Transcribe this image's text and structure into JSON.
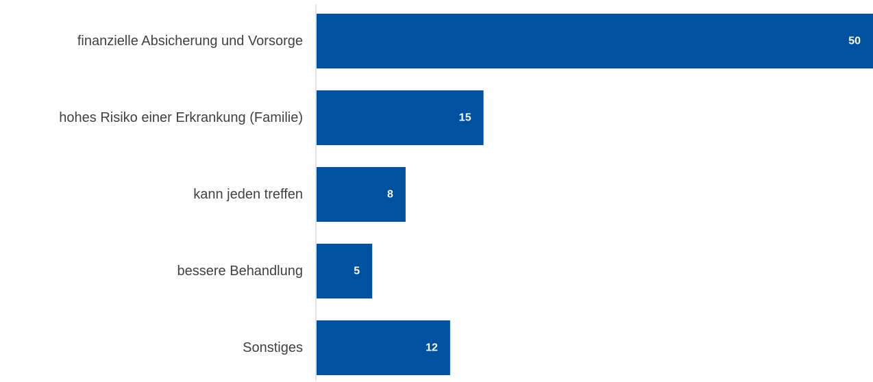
{
  "chart_data": {
    "type": "bar",
    "orientation": "horizontal",
    "categories": [
      "finanzielle Absicherung und Vorsorge",
      "hohes Risiko einer Erkrankung (Familie)",
      "kann jeden treffen",
      "bessere Behandlung",
      "Sonstiges"
    ],
    "values": [
      50,
      15,
      8,
      5,
      12
    ],
    "title": "",
    "xlabel": "",
    "ylabel": "",
    "xlim": [
      0,
      50
    ],
    "grid": false,
    "legend": "none",
    "colors": {
      "bar": "#0051A0",
      "axis": "#D9D9D9",
      "label": "#404040",
      "value_label": "#FFFFFF"
    }
  }
}
